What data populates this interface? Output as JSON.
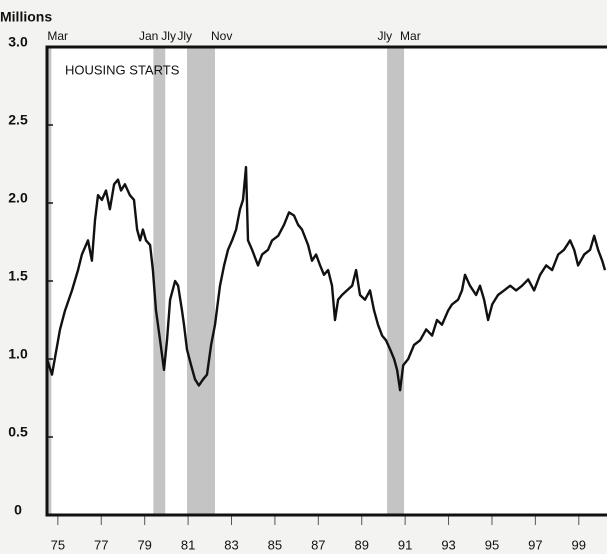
{
  "chart_data": {
    "type": "line",
    "title": "HOUSING STARTS",
    "y_label": "Millions",
    "color": "#111111",
    "xlim": [
      1975,
      2000.8
    ],
    "ylim": [
      0,
      3
    ],
    "yticks": [
      0,
      {
        "value": 0.5,
        "label": "0.5"
      },
      {
        "value": 1,
        "label": "1.0"
      },
      {
        "value": 1.5,
        "label": "1.5"
      },
      {
        "value": 2,
        "label": "2.0"
      },
      {
        "value": 2.5,
        "label": "2.5"
      },
      {
        "value": 3,
        "label": "3.0"
      }
    ],
    "xticks": [
      {
        "value": 1975.5,
        "label": "75"
      },
      {
        "value": 1977.5,
        "label": "77"
      },
      {
        "value": 1979.5,
        "label": "79"
      },
      {
        "value": 1981.5,
        "label": "81"
      },
      {
        "value": 1983.5,
        "label": "83"
      },
      {
        "value": 1985.5,
        "label": "85"
      },
      {
        "value": 1987.5,
        "label": "87"
      },
      {
        "value": 1989.5,
        "label": "89"
      },
      {
        "value": 1991.5,
        "label": "91"
      },
      {
        "value": 1993.5,
        "label": "93"
      },
      {
        "value": 1995.5,
        "label": "95"
      },
      {
        "value": 1997.5,
        "label": "97"
      },
      {
        "value": 1999.5,
        "label": "99"
      }
    ],
    "recessions": [
      {
        "start": 1974.9,
        "end": 1975.2,
        "end_label": "Mar"
      },
      {
        "start": 1979.9,
        "end": 1980.45,
        "start_label": "Jan",
        "end_label": "Jly"
      },
      {
        "start": 1981.45,
        "end": 1982.74,
        "start_label": "Jly",
        "end_label": "Nov"
      },
      {
        "start": 1990.67,
        "end": 1991.45,
        "start_label": "Jly",
        "end_label": "Mar"
      }
    ],
    "x": [
      1975.0,
      1975.23,
      1975.6,
      1975.83,
      1976.15,
      1976.43,
      1976.61,
      1976.89,
      1977.07,
      1977.21,
      1977.35,
      1977.53,
      1977.72,
      1977.9,
      1978.09,
      1978.27,
      1978.41,
      1978.59,
      1978.82,
      1979.01,
      1979.15,
      1979.29,
      1979.42,
      1979.56,
      1979.75,
      1979.88,
      1980.02,
      1980.21,
      1980.39,
      1980.53,
      1980.67,
      1980.9,
      1981.04,
      1981.22,
      1981.31,
      1981.45,
      1981.64,
      1981.82,
      1982.0,
      1982.19,
      1982.37,
      1982.56,
      1982.74,
      1982.97,
      1983.16,
      1983.34,
      1983.53,
      1983.71,
      1983.89,
      1984.03,
      1984.17,
      1984.26,
      1984.45,
      1984.72,
      1984.91,
      1985.18,
      1985.37,
      1985.65,
      1985.92,
      1986.15,
      1986.38,
      1986.57,
      1986.75,
      1987.03,
      1987.21,
      1987.4,
      1987.58,
      1987.76,
      1987.95,
      1988.13,
      1988.27,
      1988.41,
      1988.59,
      1988.82,
      1989.06,
      1989.24,
      1989.42,
      1989.65,
      1989.88,
      1990.07,
      1990.25,
      1990.44,
      1990.62,
      1990.81,
      1990.99,
      1991.13,
      1991.27,
      1991.41,
      1991.64,
      1991.91,
      1992.19,
      1992.47,
      1992.74,
      1992.97,
      1993.2,
      1993.48,
      1993.66,
      1993.94,
      1994.12,
      1994.26,
      1994.49,
      1994.77,
      1994.95,
      1995.14,
      1995.32,
      1995.51,
      1995.78,
      1996.06,
      1996.34,
      1996.61,
      1996.89,
      1997.17,
      1997.44,
      1997.72,
      1998.0,
      1998.27,
      1998.55,
      1998.82,
      1999.1,
      1999.29,
      1999.47,
      1999.75,
      2000.02,
      2000.21,
      2000.39,
      2000.58,
      2000.71
    ],
    "values": [
      1.0,
      0.9,
      1.19,
      1.31,
      1.44,
      1.57,
      1.67,
      1.76,
      1.63,
      1.89,
      2.05,
      2.02,
      2.08,
      1.96,
      2.12,
      2.15,
      2.08,
      2.12,
      2.05,
      2.02,
      1.83,
      1.76,
      1.83,
      1.76,
      1.73,
      1.57,
      1.31,
      1.12,
      0.93,
      1.12,
      1.38,
      1.5,
      1.47,
      1.31,
      1.22,
      1.06,
      0.96,
      0.87,
      0.83,
      0.87,
      0.9,
      1.09,
      1.22,
      1.47,
      1.6,
      1.7,
      1.76,
      1.83,
      1.96,
      2.02,
      2.23,
      1.76,
      1.7,
      1.6,
      1.67,
      1.7,
      1.76,
      1.79,
      1.86,
      1.94,
      1.92,
      1.86,
      1.83,
      1.73,
      1.63,
      1.67,
      1.6,
      1.54,
      1.57,
      1.47,
      1.25,
      1.38,
      1.41,
      1.44,
      1.47,
      1.57,
      1.41,
      1.38,
      1.44,
      1.31,
      1.22,
      1.15,
      1.12,
      1.06,
      1.0,
      0.93,
      0.8,
      0.96,
      1.0,
      1.09,
      1.12,
      1.19,
      1.15,
      1.25,
      1.22,
      1.31,
      1.35,
      1.38,
      1.44,
      1.54,
      1.47,
      1.41,
      1.47,
      1.38,
      1.25,
      1.35,
      1.41,
      1.44,
      1.47,
      1.44,
      1.47,
      1.51,
      1.44,
      1.54,
      1.6,
      1.57,
      1.67,
      1.7,
      1.76,
      1.7,
      1.6,
      1.67,
      1.7,
      1.79,
      1.7,
      1.63,
      1.57
    ]
  }
}
